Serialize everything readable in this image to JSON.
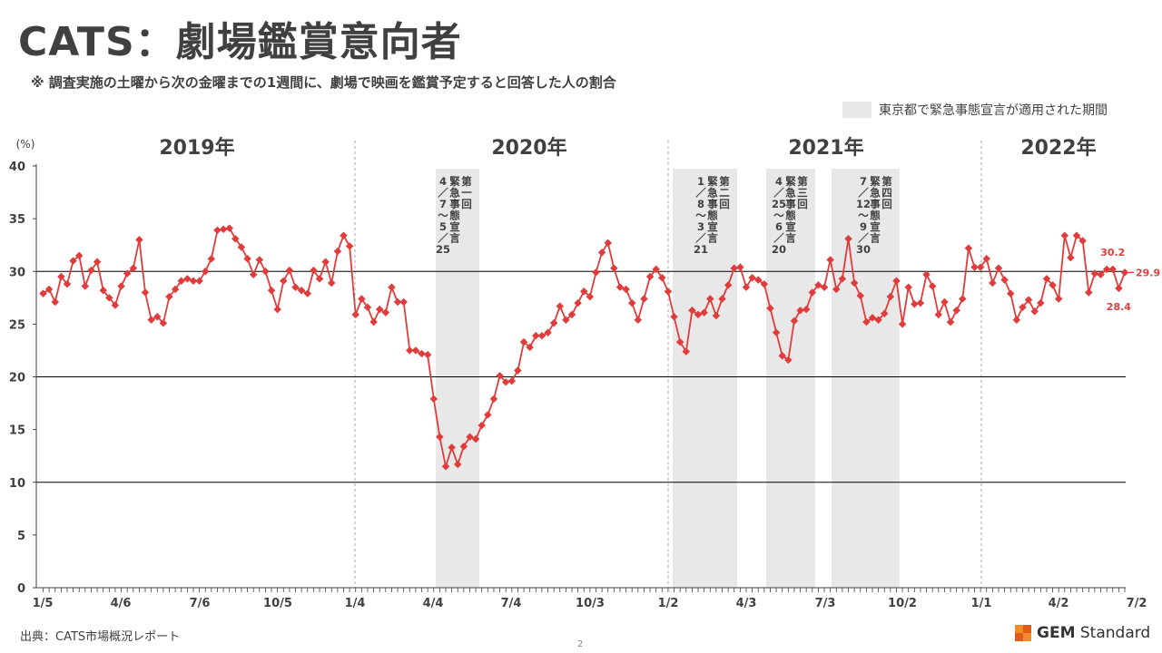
{
  "title": "CATS：劇場鑑賞意向者",
  "subtitle": "※ 調査実施の土曜から次の金曜までの1週間に、劇場で映画を鑑賞予定すると回答した人の割合",
  "legend": {
    "label": "東京都で緊急事態宣言が適用された期間",
    "color": "#e8e8e8"
  },
  "source": "出典：CATS市場概況レポート",
  "page_number": "2",
  "logo": {
    "bold": "GEM",
    "rest": " Standard",
    "colors": [
      "#f28c28",
      "#e05a1a"
    ]
  },
  "chart_data": {
    "type": "line",
    "unit_label": "(%)",
    "ylim": [
      0,
      40
    ],
    "yticks": [
      0,
      5,
      10,
      15,
      20,
      25,
      30,
      35,
      40
    ],
    "gridlines": [
      10,
      20,
      30
    ],
    "line_color": "#e03c3c",
    "x_tick_labels": [
      "1/5",
      "4/6",
      "7/6",
      "10/5",
      "1/4",
      "4/4",
      "7/4",
      "10/3",
      "1/2",
      "4/3",
      "7/3",
      "10/2",
      "1/1",
      "4/2",
      "7/2"
    ],
    "years": [
      "2019年",
      "2020年",
      "2021年",
      "2022年"
    ],
    "emergency_periods": [
      {
        "label": "第一回\n緊急事態宣言\n4/7〜5/25"
      },
      {
        "label": "第二回\n緊急事態宣言\n1/8〜3/21"
      },
      {
        "label": "第三回\n緊急事態宣言\n4/25〜6/20"
      },
      {
        "label": "第四回\n緊急事態宣言\n7/12〜9/30"
      }
    ],
    "annotations": [
      "30.2",
      "28.4",
      "29.9"
    ],
    "values": [
      27.9,
      28.3,
      27.1,
      29.5,
      28.8,
      31.0,
      31.5,
      28.6,
      30.1,
      30.9,
      28.2,
      27.5,
      26.8,
      28.6,
      29.8,
      30.3,
      33.0,
      28.0,
      25.4,
      25.7,
      25.1,
      27.6,
      28.3,
      29.1,
      29.3,
      29.1,
      29.1,
      30.0,
      31.2,
      33.9,
      34.0,
      34.1,
      33.1,
      32.3,
      31.2,
      29.7,
      31.1,
      30.0,
      28.2,
      26.4,
      29.1,
      30.1,
      28.5,
      28.2,
      27.9,
      30.1,
      29.3,
      30.9,
      28.9,
      31.9,
      33.4,
      32.4,
      25.9,
      27.4,
      26.6,
      25.2,
      26.4,
      26.1,
      28.5,
      27.1,
      27.1,
      22.5,
      22.5,
      22.2,
      22.1,
      17.9,
      14.3,
      11.5,
      13.3,
      11.7,
      13.4,
      14.3,
      14.1,
      15.4,
      16.4,
      17.9,
      20.1,
      19.5,
      19.6,
      20.6,
      23.3,
      22.8,
      23.9,
      23.9,
      24.2,
      25.1,
      26.7,
      25.4,
      25.9,
      27.0,
      28.1,
      27.6,
      29.9,
      31.8,
      32.7,
      30.3,
      28.5,
      28.3,
      27.0,
      25.4,
      27.4,
      29.5,
      30.2,
      29.4,
      28.1,
      25.7,
      23.3,
      22.4,
      26.3,
      25.9,
      26.1,
      27.4,
      25.8,
      27.4,
      28.7,
      30.3,
      30.4,
      28.5,
      29.4,
      29.2,
      28.8,
      26.5,
      24.2,
      22.0,
      21.6,
      25.3,
      26.3,
      26.4,
      28.0,
      28.7,
      28.5,
      31.1,
      28.3,
      29.3,
      33.1,
      28.9,
      27.7,
      25.2,
      25.6,
      25.4,
      26.0,
      27.6,
      29.1,
      25.0,
      28.5,
      26.9,
      27.0,
      29.7,
      28.6,
      25.9,
      27.1,
      25.2,
      26.3,
      27.4,
      32.2,
      30.4,
      30.4,
      31.2,
      28.9,
      30.3,
      29.2,
      27.9,
      25.4,
      26.6,
      27.3,
      26.2,
      27.0,
      29.3,
      28.7,
      27.4,
      33.4,
      31.3,
      33.4,
      32.9,
      28.0,
      29.8,
      29.7,
      30.2,
      30.2,
      28.4,
      29.9
    ]
  }
}
